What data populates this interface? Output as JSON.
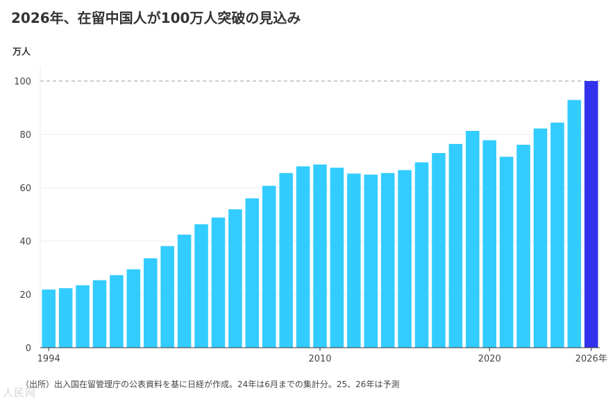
{
  "title": "2026年、在留中国人が100万人突破の見込み",
  "unit_label": "万人",
  "source": "（出所）出入国在留管理庁の公表資料を基に日経が作成。24年は6月までの集計分。25、26年は予測",
  "watermark": "人民网",
  "colors": {
    "bar": "#33ccff",
    "highlight": "#3333ee",
    "grid": "#e6eef2",
    "reference": "#999999",
    "axis": "#333333"
  },
  "chart_data": {
    "type": "bar",
    "title": "2026年、在留中国人が100万人突破の見込み",
    "xlabel": "",
    "ylabel": "万人",
    "ylim": [
      0,
      100
    ],
    "yticks": [
      0,
      20,
      40,
      60,
      80,
      100
    ],
    "reference_line": 100,
    "categories": [
      "1994",
      "1995",
      "1996",
      "1997",
      "1998",
      "1999",
      "2000",
      "2001",
      "2002",
      "2003",
      "2004",
      "2005",
      "2006",
      "2007",
      "2008",
      "2009",
      "2010",
      "2011",
      "2012",
      "2013",
      "2014",
      "2015",
      "2016",
      "2017",
      "2018",
      "2019",
      "2020",
      "2021",
      "2022",
      "2023",
      "2024",
      "2025",
      "2026"
    ],
    "values": [
      21.8,
      22.3,
      23.4,
      25.3,
      27.2,
      29.4,
      33.5,
      38.1,
      42.4,
      46.3,
      48.8,
      51.9,
      56.0,
      60.7,
      65.5,
      68.0,
      68.7,
      67.5,
      65.3,
      64.9,
      65.5,
      66.6,
      69.5,
      73.0,
      76.4,
      81.3,
      77.8,
      71.6,
      76.1,
      82.2,
      84.4,
      92.9,
      100.0
    ],
    "highlight_index": 32,
    "x_tick_labels": [
      {
        "index": 0,
        "label": "1994"
      },
      {
        "index": 16,
        "label": "2010"
      },
      {
        "index": 26,
        "label": "2020"
      },
      {
        "index": 32,
        "label": "2026年"
      }
    ]
  }
}
